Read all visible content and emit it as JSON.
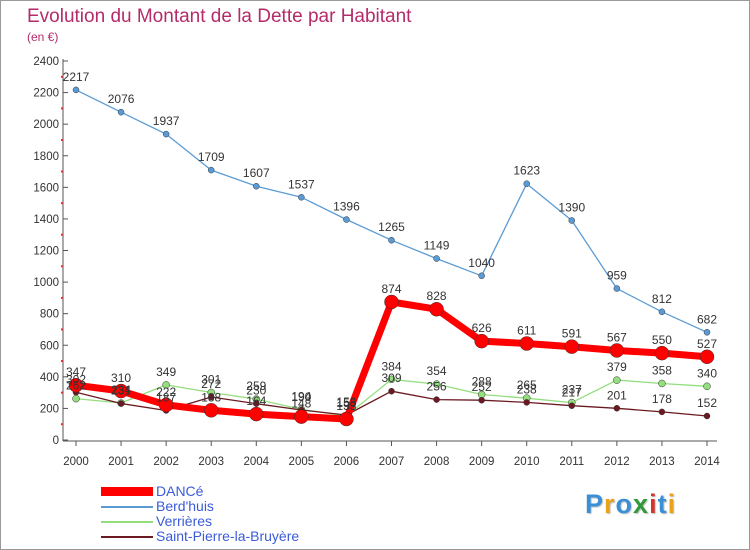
{
  "title": "Evolution du Montant de la Dette par Habitant",
  "subtitle": "(en €)",
  "logo": {
    "text": "Proxiti",
    "letter_colors": [
      "#3a8fd6",
      "#e8a21c",
      "#3a8fd6",
      "#2f9a3a",
      "#d6342a",
      "#3a8fd6",
      "#e8a21c"
    ]
  },
  "chart_data": {
    "type": "line",
    "x": [
      "2000",
      "2001",
      "2002",
      "2003",
      "2004",
      "2005",
      "2006",
      "2007",
      "2008",
      "2009",
      "2010",
      "2011",
      "2012",
      "2013",
      "2014"
    ],
    "y_ticks": [
      "0",
      "200",
      "400",
      "600",
      "800",
      "1000",
      "1200",
      "1400",
      "1600",
      "1800",
      "2000",
      "2200",
      "2400"
    ],
    "ylim": [
      0,
      2400
    ],
    "grid": false,
    "legend_position": "bottom-left",
    "series": [
      {
        "name": "Berd'huis",
        "color": "#5b9bd5",
        "width": 1.3,
        "dot": 3,
        "values": [
          2217,
          2076,
          1937,
          1709,
          1607,
          1537,
          1396,
          1265,
          1149,
          1040,
          1623,
          1390,
          959,
          812,
          682
        ]
      },
      {
        "name": "Verrières",
        "color": "#93de7e",
        "width": 1.3,
        "dot": 3.5,
        "values": [
          262,
          234,
          349,
          301,
          259,
          194,
          153,
          384,
          354,
          288,
          265,
          237,
          379,
          358,
          340
        ]
      },
      {
        "name": "Saint-Pierre-la-Bruyère",
        "color": "#6b1a22",
        "width": 1.3,
        "dot": 3,
        "values": [
          302,
          231,
          187,
          272,
          230,
          190,
          158,
          309,
          256,
          252,
          238,
          217,
          201,
          178,
          152
        ]
      },
      {
        "name": "DANCé",
        "color": "#ff0000",
        "width": 7,
        "dot": 7,
        "values": [
          347,
          310,
          222,
          188,
          164,
          148,
          133,
          874,
          828,
          626,
          611,
          591,
          567,
          550,
          527
        ]
      }
    ]
  }
}
